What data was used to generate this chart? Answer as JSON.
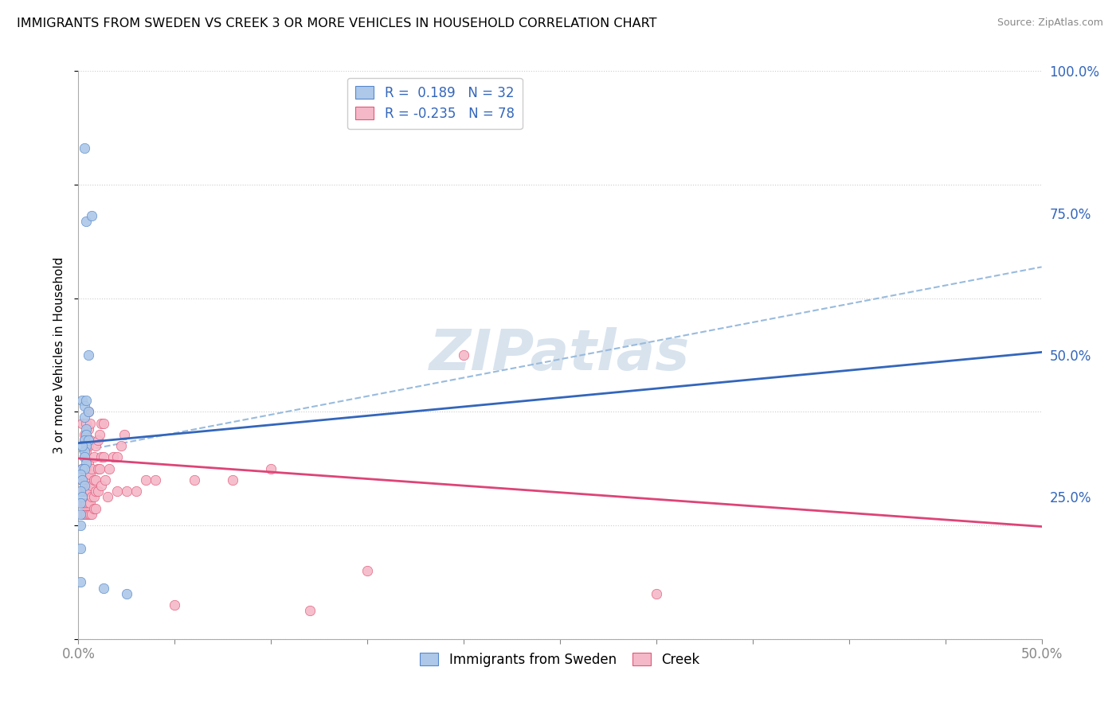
{
  "title": "IMMIGRANTS FROM SWEDEN VS CREEK 3 OR MORE VEHICLES IN HOUSEHOLD CORRELATION CHART",
  "source": "Source: ZipAtlas.com",
  "xlim": [
    0.0,
    0.5
  ],
  "ylim": [
    0.0,
    1.0
  ],
  "sweden_fill_color": "#adc8e8",
  "sweden_edge_color": "#5588cc",
  "creek_fill_color": "#f5b8c8",
  "creek_edge_color": "#e05878",
  "sweden_line_color": "#3366bb",
  "creek_line_color": "#dd4477",
  "dashed_line_color": "#99bbdd",
  "legend_text_color": "#3366bb",
  "watermark_color": "#c8d8e8",
  "ylabel_right": [
    "25.0%",
    "50.0%",
    "75.0%",
    "100.0%"
  ],
  "ylabel_right_vals": [
    0.25,
    0.5,
    0.75,
    1.0
  ],
  "legend_label_sweden": "Immigrants from Sweden",
  "legend_label_creek": "Creek",
  "sweden_line_x": [
    0.0,
    0.5
  ],
  "sweden_line_y": [
    0.345,
    0.505
  ],
  "creek_line_x": [
    0.0,
    0.5
  ],
  "creek_line_y": [
    0.318,
    0.198
  ],
  "dashed_line_x": [
    0.0,
    0.5
  ],
  "dashed_line_y": [
    0.33,
    0.655
  ],
  "sweden_points": [
    [
      0.003,
      0.865
    ],
    [
      0.004,
      0.735
    ],
    [
      0.007,
      0.745
    ],
    [
      0.005,
      0.5
    ],
    [
      0.002,
      0.42
    ],
    [
      0.003,
      0.41
    ],
    [
      0.004,
      0.42
    ],
    [
      0.003,
      0.39
    ],
    [
      0.004,
      0.37
    ],
    [
      0.005,
      0.4
    ],
    [
      0.004,
      0.36
    ],
    [
      0.003,
      0.35
    ],
    [
      0.005,
      0.35
    ],
    [
      0.004,
      0.34
    ],
    [
      0.003,
      0.33
    ],
    [
      0.002,
      0.34
    ],
    [
      0.003,
      0.32
    ],
    [
      0.004,
      0.31
    ],
    [
      0.002,
      0.3
    ],
    [
      0.003,
      0.3
    ],
    [
      0.001,
      0.29
    ],
    [
      0.002,
      0.28
    ],
    [
      0.003,
      0.27
    ],
    [
      0.001,
      0.26
    ],
    [
      0.002,
      0.25
    ],
    [
      0.001,
      0.24
    ],
    [
      0.001,
      0.22
    ],
    [
      0.001,
      0.2
    ],
    [
      0.001,
      0.16
    ],
    [
      0.001,
      0.1
    ],
    [
      0.013,
      0.09
    ],
    [
      0.025,
      0.08
    ]
  ],
  "creek_points": [
    [
      0.002,
      0.38
    ],
    [
      0.003,
      0.36
    ],
    [
      0.004,
      0.38
    ],
    [
      0.005,
      0.4
    ],
    [
      0.003,
      0.35
    ],
    [
      0.004,
      0.36
    ],
    [
      0.005,
      0.37
    ],
    [
      0.006,
      0.38
    ],
    [
      0.003,
      0.32
    ],
    [
      0.004,
      0.33
    ],
    [
      0.005,
      0.34
    ],
    [
      0.006,
      0.35
    ],
    [
      0.002,
      0.3
    ],
    [
      0.003,
      0.3
    ],
    [
      0.004,
      0.3
    ],
    [
      0.005,
      0.31
    ],
    [
      0.002,
      0.28
    ],
    [
      0.003,
      0.28
    ],
    [
      0.004,
      0.28
    ],
    [
      0.005,
      0.28
    ],
    [
      0.006,
      0.29
    ],
    [
      0.007,
      0.3
    ],
    [
      0.008,
      0.32
    ],
    [
      0.009,
      0.34
    ],
    [
      0.01,
      0.35
    ],
    [
      0.011,
      0.36
    ],
    [
      0.012,
      0.38
    ],
    [
      0.013,
      0.38
    ],
    [
      0.002,
      0.26
    ],
    [
      0.003,
      0.26
    ],
    [
      0.004,
      0.26
    ],
    [
      0.005,
      0.26
    ],
    [
      0.006,
      0.26
    ],
    [
      0.007,
      0.27
    ],
    [
      0.008,
      0.28
    ],
    [
      0.009,
      0.28
    ],
    [
      0.01,
      0.3
    ],
    [
      0.011,
      0.3
    ],
    [
      0.012,
      0.32
    ],
    [
      0.013,
      0.32
    ],
    [
      0.002,
      0.24
    ],
    [
      0.003,
      0.24
    ],
    [
      0.004,
      0.24
    ],
    [
      0.005,
      0.24
    ],
    [
      0.006,
      0.24
    ],
    [
      0.007,
      0.25
    ],
    [
      0.008,
      0.25
    ],
    [
      0.009,
      0.26
    ],
    [
      0.01,
      0.26
    ],
    [
      0.012,
      0.27
    ],
    [
      0.014,
      0.28
    ],
    [
      0.016,
      0.3
    ],
    [
      0.018,
      0.32
    ],
    [
      0.02,
      0.32
    ],
    [
      0.022,
      0.34
    ],
    [
      0.024,
      0.36
    ],
    [
      0.002,
      0.22
    ],
    [
      0.003,
      0.22
    ],
    [
      0.004,
      0.22
    ],
    [
      0.005,
      0.22
    ],
    [
      0.006,
      0.22
    ],
    [
      0.007,
      0.22
    ],
    [
      0.008,
      0.23
    ],
    [
      0.009,
      0.23
    ],
    [
      0.015,
      0.25
    ],
    [
      0.02,
      0.26
    ],
    [
      0.025,
      0.26
    ],
    [
      0.03,
      0.26
    ],
    [
      0.035,
      0.28
    ],
    [
      0.04,
      0.28
    ],
    [
      0.06,
      0.28
    ],
    [
      0.08,
      0.28
    ],
    [
      0.1,
      0.3
    ],
    [
      0.15,
      0.12
    ],
    [
      0.2,
      0.5
    ],
    [
      0.3,
      0.08
    ],
    [
      0.05,
      0.06
    ],
    [
      0.12,
      0.05
    ]
  ]
}
